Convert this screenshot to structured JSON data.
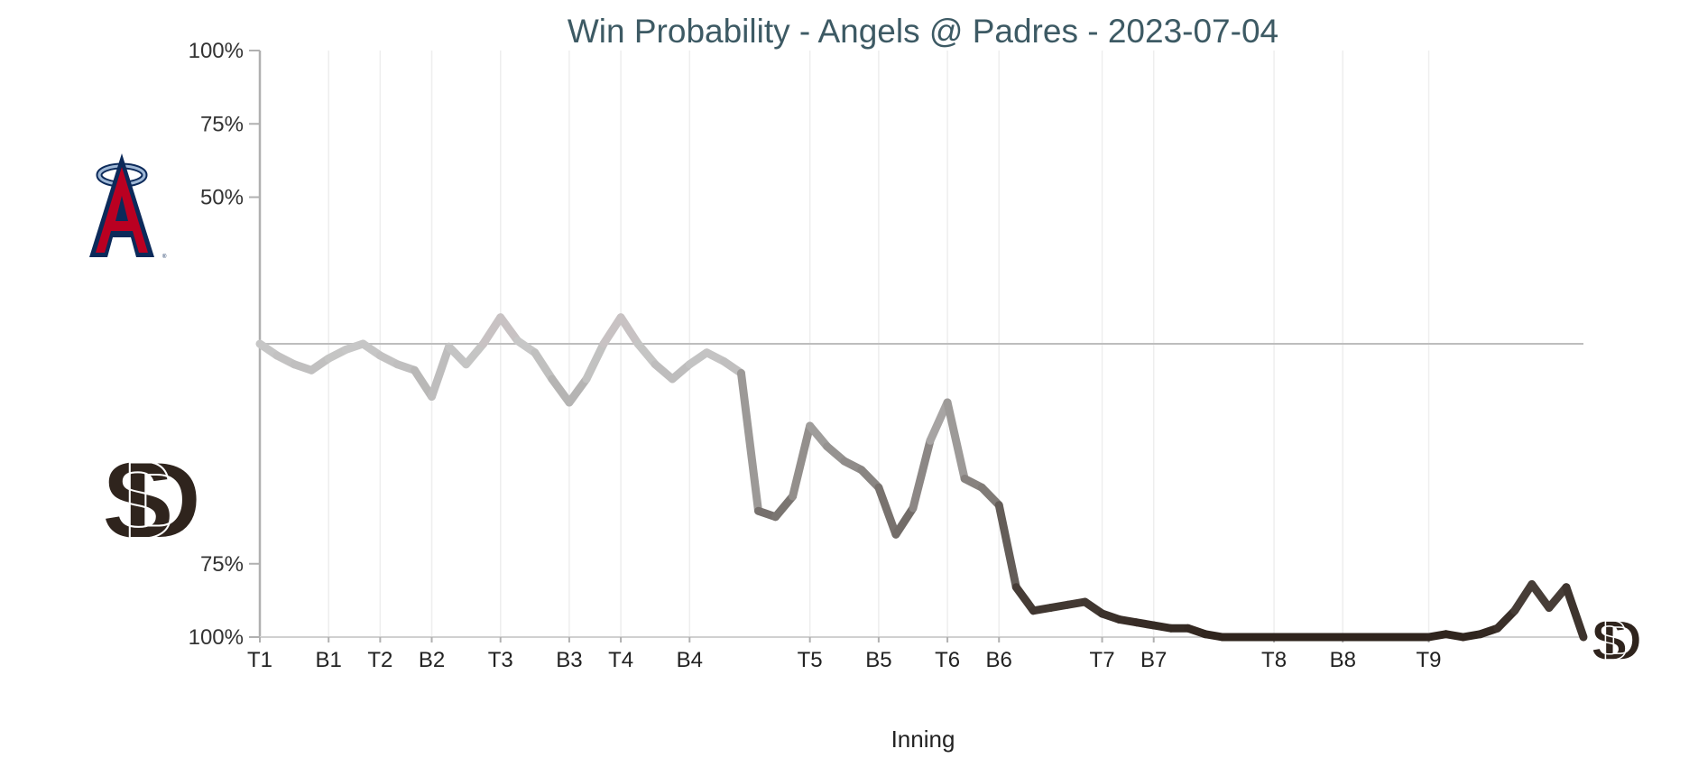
{
  "chart_data": {
    "type": "line",
    "title": "Win Probability - Angels @ Padres - 2023-07-04",
    "xlabel": "Inning",
    "ylabel": "",
    "teams": {
      "away": {
        "name": "Angels",
        "logo_icon": "angels-halo-a-logo-icon",
        "color": "#ba0021"
      },
      "home": {
        "name": "Padres",
        "logo_icon": "padres-sd-logo-icon",
        "color": "#2f241d"
      }
    },
    "yticks": [
      {
        "label": "100%",
        "value": 100
      },
      {
        "label": "75%",
        "value": 75
      },
      {
        "label": "50%",
        "value": 50
      },
      {
        "label": "75%",
        "value": -75
      },
      {
        "label": "100%",
        "value": -100
      }
    ],
    "y_note": "positive = Angels win probability, negative = Padres win probability",
    "ylim": [
      -100,
      100
    ],
    "xlim": [
      0,
      77
    ],
    "xticks": [
      {
        "label": "T1",
        "x": 0
      },
      {
        "label": "B1",
        "x": 4
      },
      {
        "label": "T2",
        "x": 7
      },
      {
        "label": "B2",
        "x": 10
      },
      {
        "label": "T3",
        "x": 14
      },
      {
        "label": "B3",
        "x": 18
      },
      {
        "label": "T4",
        "x": 21
      },
      {
        "label": "B4",
        "x": 25
      },
      {
        "label": "T5",
        "x": 32
      },
      {
        "label": "B5",
        "x": 36
      },
      {
        "label": "T6",
        "x": 40
      },
      {
        "label": "B6",
        "x": 43
      },
      {
        "label": "T7",
        "x": 49
      },
      {
        "label": "B7",
        "x": 52
      },
      {
        "label": "T8",
        "x": 59
      },
      {
        "label": "B8",
        "x": 63
      },
      {
        "label": "T9",
        "x": 68
      }
    ],
    "grid": true,
    "midline_value": 0,
    "series": [
      {
        "points": [
          [
            0,
            0
          ],
          [
            1,
            -4
          ],
          [
            2,
            -7
          ],
          [
            3,
            -9
          ],
          [
            4,
            -5
          ],
          [
            5,
            -2
          ],
          [
            6,
            0
          ],
          [
            7,
            -4
          ],
          [
            8,
            -7
          ],
          [
            9,
            -9
          ],
          [
            10,
            -18
          ],
          [
            11,
            -1
          ],
          [
            12,
            -7
          ],
          [
            13,
            0
          ],
          [
            14,
            9
          ],
          [
            15,
            1
          ],
          [
            16,
            -3
          ],
          [
            17,
            -12
          ],
          [
            18,
            -20
          ],
          [
            19,
            -12
          ],
          [
            20,
            0
          ],
          [
            21,
            9
          ],
          [
            22,
            0
          ],
          [
            23,
            -7
          ],
          [
            24,
            -12
          ],
          [
            25,
            -7
          ],
          [
            26,
            -3
          ],
          [
            27,
            -6
          ],
          [
            28,
            -10
          ],
          [
            29,
            -57
          ],
          [
            30,
            -59
          ],
          [
            31,
            -52
          ],
          [
            32,
            -28
          ],
          [
            33,
            -35
          ],
          [
            34,
            -40
          ],
          [
            35,
            -43
          ],
          [
            36,
            -49
          ],
          [
            37,
            -65
          ],
          [
            38,
            -56
          ],
          [
            39,
            -33
          ],
          [
            40,
            -20
          ],
          [
            41,
            -46
          ],
          [
            42,
            -49
          ],
          [
            43,
            -55
          ],
          [
            44,
            -83
          ],
          [
            45,
            -91
          ],
          [
            46,
            -90
          ],
          [
            47,
            -89
          ],
          [
            48,
            -88
          ],
          [
            49,
            -92
          ],
          [
            50,
            -94
          ],
          [
            51,
            -95
          ],
          [
            52,
            -96
          ],
          [
            53,
            -97
          ],
          [
            54,
            -97
          ],
          [
            55,
            -99
          ],
          [
            56,
            -100
          ],
          [
            57,
            -100
          ],
          [
            58,
            -100
          ],
          [
            59,
            -100
          ],
          [
            60,
            -100
          ],
          [
            61,
            -100
          ],
          [
            62,
            -100
          ],
          [
            63,
            -100
          ],
          [
            64,
            -100
          ],
          [
            65,
            -100
          ],
          [
            66,
            -100
          ],
          [
            67,
            -100
          ],
          [
            68,
            -100
          ],
          [
            69,
            -99
          ],
          [
            70,
            -100
          ],
          [
            71,
            -99
          ],
          [
            72,
            -97
          ],
          [
            73,
            -91
          ],
          [
            74,
            -82
          ],
          [
            75,
            -90
          ],
          [
            76,
            -83
          ],
          [
            77,
            -100
          ]
        ]
      }
    ],
    "line_gradient": {
      "neutral_color": "#c8c8c8",
      "away_tint": "#c9a9ae",
      "home_color": "#2f241d"
    }
  }
}
